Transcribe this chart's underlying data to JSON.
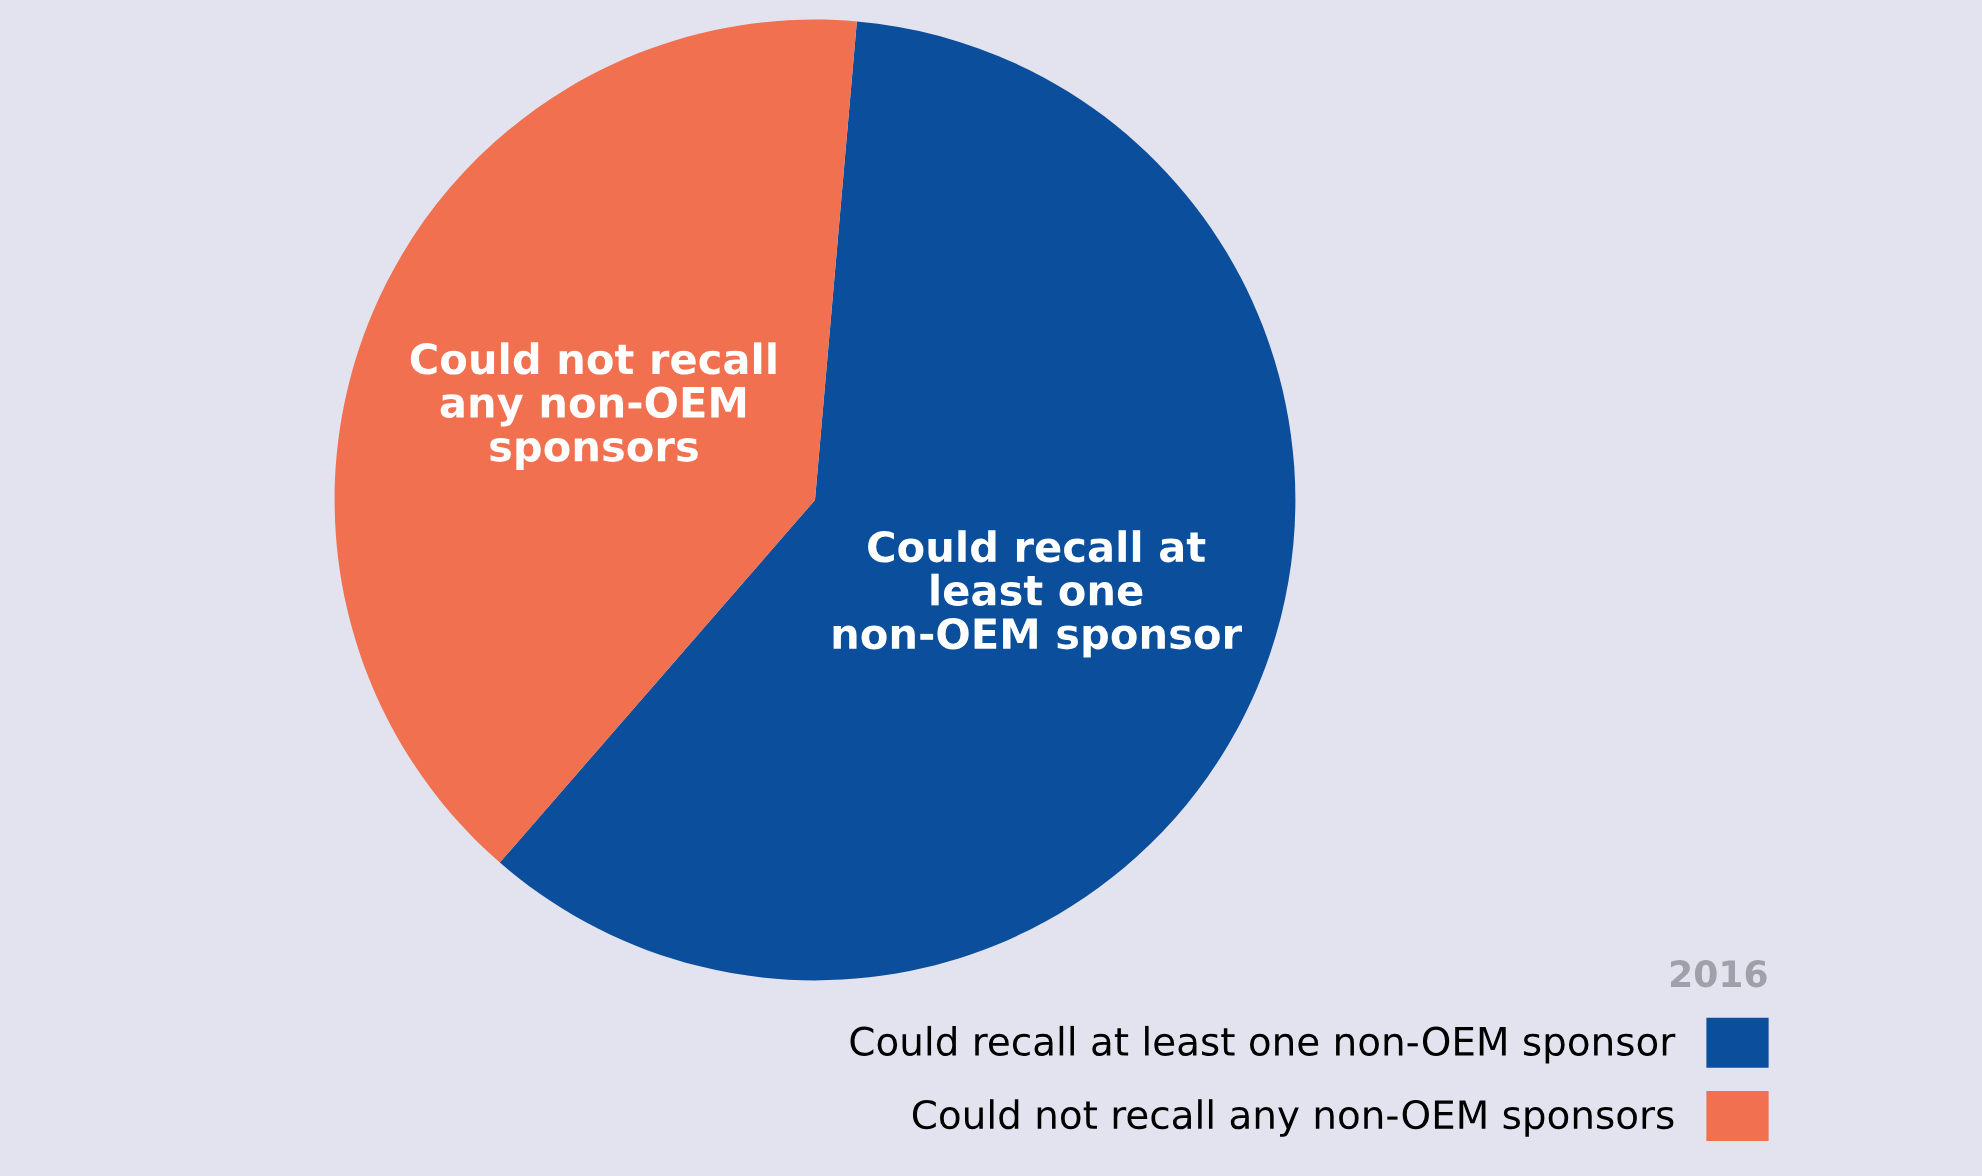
{
  "chart_data": {
    "type": "pie",
    "categories": [
      "Could recall at least one non-OEM sponsor",
      "Could not recall any non-OEM sponsors"
    ],
    "values": [
      60,
      40
    ],
    "colors": [
      "#0b4f9c",
      "#f07050"
    ],
    "legend_title": "2016",
    "legend": "bottom right"
  }
}
